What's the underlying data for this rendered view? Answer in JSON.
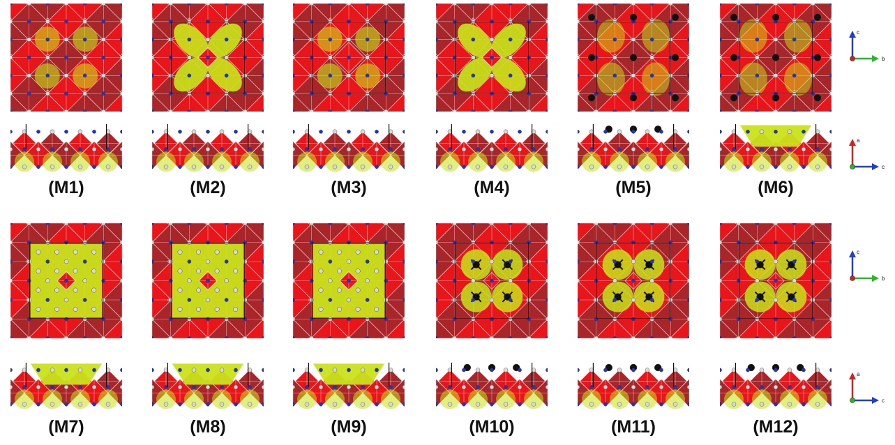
{
  "colors": {
    "octahedron_red": "#e8161a",
    "octahedron_dark": "#a8262a",
    "adsorbate_yellow": "#c9e21a",
    "atom_blue": "#2233cc",
    "atom_white": "#d9d9d9",
    "atom_black": "#111111",
    "axis_red": "#d42020",
    "axis_green": "#22bb22",
    "axis_blue": "#1f3fd0"
  },
  "models": [
    {
      "label": "(M1)",
      "top_style": "mixed",
      "side_style": "plain",
      "black_atoms": false
    },
    {
      "label": "(M2)",
      "top_style": "x-yellow",
      "side_style": "plain",
      "black_atoms": false
    },
    {
      "label": "(M3)",
      "top_style": "red-center",
      "side_style": "plain",
      "black_atoms": false
    },
    {
      "label": "(M4)",
      "top_style": "x-yellow",
      "side_style": "plain",
      "black_atoms": false
    },
    {
      "label": "(M5)",
      "top_style": "black-dots",
      "side_style": "black-top",
      "black_atoms": true
    },
    {
      "label": "(M6)",
      "top_style": "black-dots",
      "side_style": "yellow-top",
      "black_atoms": true
    },
    {
      "label": "(M7)",
      "top_style": "big-yellow",
      "side_style": "yellow-top",
      "black_atoms": false
    },
    {
      "label": "(M8)",
      "top_style": "big-yellow",
      "side_style": "yellow-top",
      "black_atoms": false
    },
    {
      "label": "(M9)",
      "top_style": "big-yellow",
      "side_style": "yellow-top",
      "black_atoms": false
    },
    {
      "label": "(M10)",
      "top_style": "yellow-black",
      "side_style": "black-top",
      "black_atoms": true
    },
    {
      "label": "(M11)",
      "top_style": "yellow-black",
      "side_style": "black-top",
      "black_atoms": true
    },
    {
      "label": "(M12)",
      "top_style": "yellow-black",
      "side_style": "black-top",
      "black_atoms": true
    }
  ],
  "axes_top": {
    "vertical": "c",
    "horizontal": "b"
  },
  "axes_side": {
    "vertical": "a",
    "horizontal": "c"
  }
}
